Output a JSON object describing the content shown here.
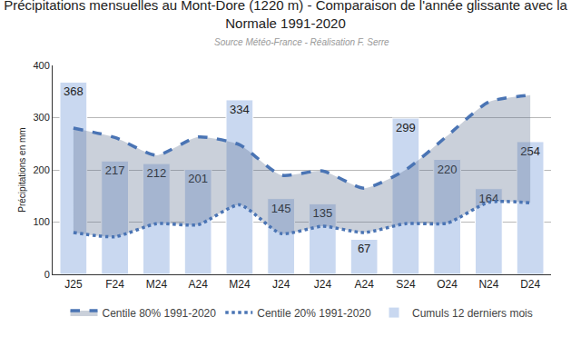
{
  "chart_data": {
    "type": "bar",
    "title": "Précipitations mensuelles au Mont-Dore (1220 m) - Comparaison de l'année glissante avec la Normale 1991-2020",
    "subtitle": "Source Météo-France - Réalisation F. Serre",
    "y_label": "Précipitations en mm",
    "categories": [
      "J25",
      "F24",
      "M24",
      "A24",
      "M24",
      "J24",
      "J24",
      "A24",
      "S24",
      "O24",
      "N24",
      "D24"
    ],
    "series": [
      {
        "name": "Centile 80% 1991-2020",
        "type": "line",
        "line_style": "dashed",
        "color": "#4a74b4",
        "values": [
          280,
          262,
          228,
          263,
          248,
          190,
          198,
          165,
          200,
          265,
          330,
          343
        ]
      },
      {
        "name": "Centile 20% 1991-2020",
        "type": "line",
        "line_style": "dotted",
        "color": "#4a74b4",
        "values": [
          80,
          72,
          97,
          95,
          133,
          78,
          92,
          80,
          97,
          98,
          138,
          137
        ]
      },
      {
        "name": "Cumuls 12 derniers mois",
        "type": "bar",
        "color": "#c9d8f0",
        "values": [
          368,
          217,
          212,
          201,
          334,
          145,
          135,
          67,
          299,
          220,
          164,
          254
        ]
      }
    ],
    "data_labels": true,
    "ylim": [
      0,
      400
    ],
    "yticks": [
      0,
      100,
      200,
      300,
      400
    ],
    "grid": true,
    "legend": "bottom"
  }
}
